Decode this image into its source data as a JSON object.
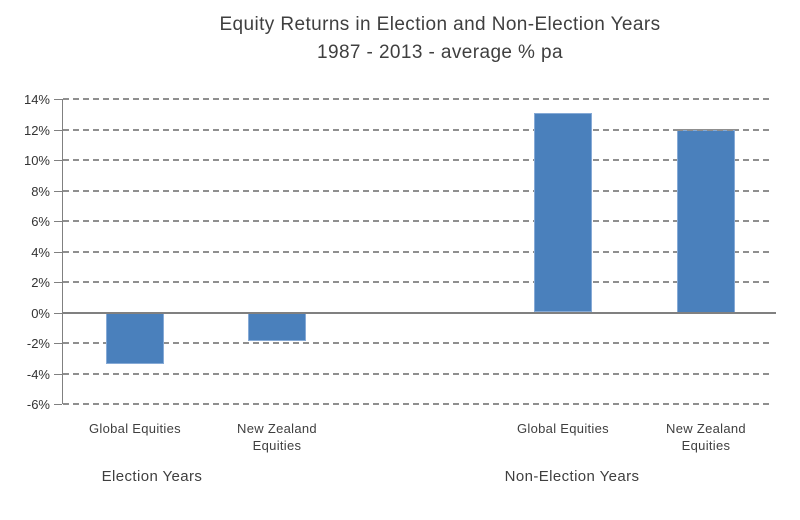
{
  "title": {
    "line1": "Equity Returns in Election and Non-Election Years",
    "line2": "1987 - 2013 - average % pa"
  },
  "chart_data": {
    "type": "bar",
    "title": "Equity Returns in Election and Non-Election Years",
    "subtitle": "1987 - 2013 - average % pa",
    "ylabel": "",
    "xlabel": "",
    "ylim": [
      -6,
      14
    ],
    "tick_step": 2,
    "y_tick_labels": [
      "14%",
      "12%",
      "10%",
      "8%",
      "6%",
      "4%",
      "2%",
      "0%",
      "-2%",
      "-4%",
      "-6%"
    ],
    "y_tick_values": [
      14,
      12,
      10,
      8,
      6,
      4,
      2,
      0,
      -2,
      -4,
      -6
    ],
    "grid": "horizontal-dashed",
    "legend": "none",
    "bar_color": "#4a80bc",
    "groups": [
      {
        "label": "Election Years",
        "bars": [
          {
            "category": "Global Equities",
            "value": -3.4
          },
          {
            "category": "New Zealand Equities",
            "value": -1.9
          }
        ]
      },
      {
        "label": "Non-Election Years",
        "bars": [
          {
            "category": "Global Equities",
            "value": 13.1
          },
          {
            "category": "New Zealand Equities",
            "value": 12.0
          }
        ]
      }
    ]
  }
}
